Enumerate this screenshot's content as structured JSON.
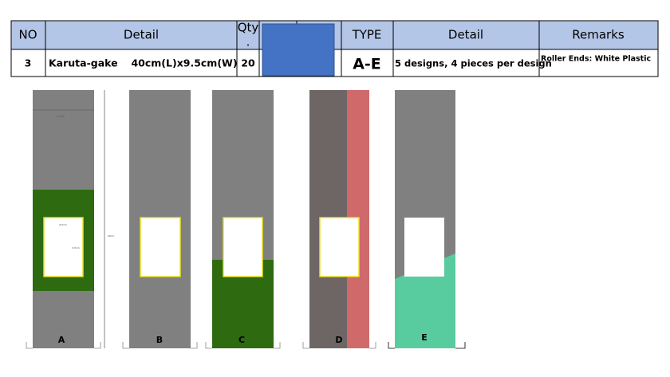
{
  "table": {
    "header": [
      "NO",
      "Detail",
      "Qty",
      "",
      "TYPE",
      "Detail",
      "Remarks"
    ],
    "qty_mark": ".",
    "row": [
      "3",
      "Karuta-gake　 40cm(L)x9.5cm(W)",
      "20",
      "A-E",
      "5 designs, 4 pieces per design",
      "Roller Ends: White Plastic"
    ]
  },
  "drawings": {
    "labels": [
      "A",
      "B",
      "C",
      "D",
      "E"
    ],
    "dimensions": [
      "2.5cm",
      "6.5cm",
      "9.5cm",
      "40cm"
    ]
  }
}
